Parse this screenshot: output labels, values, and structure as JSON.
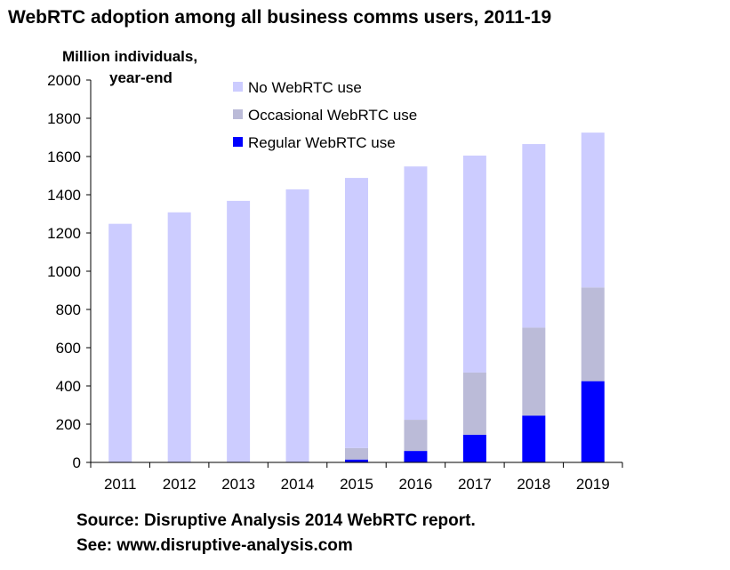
{
  "header": {
    "title": "WebRTC adoption among all business comms users, 2011-19",
    "ylabel_line1": "Million individuals,",
    "ylabel_line2": "year-end"
  },
  "footer": {
    "source_line1": "Source: Disruptive Analysis 2014 WebRTC report.",
    "source_line2": "See: www.disruptive-analysis.com"
  },
  "chart_data": {
    "type": "bar",
    "stacked": true,
    "title": "WebRTC adoption among all business comms users, 2011-19",
    "ylabel": "Million individuals, year-end",
    "xlabel": "",
    "ylim": [
      0,
      2000
    ],
    "yticks": [
      0,
      200,
      400,
      600,
      800,
      1000,
      1200,
      1400,
      1600,
      1800,
      2000
    ],
    "categories": [
      "2011",
      "2012",
      "2013",
      "2014",
      "2015",
      "2016",
      "2017",
      "2018",
      "2019"
    ],
    "legend_position": "top-center",
    "series": [
      {
        "name": "Regular WebRTC use",
        "color": "#0000ff",
        "values": [
          0,
          0,
          0,
          0,
          15,
          60,
          145,
          245,
          425
        ]
      },
      {
        "name": "Occasional WebRTC use",
        "color": "#bbbbd8",
        "values": [
          0,
          0,
          0,
          0,
          60,
          163,
          325,
          460,
          490
        ]
      },
      {
        "name": "No WebRTC use",
        "color": "#ccccff",
        "values": [
          1248,
          1308,
          1368,
          1428,
          1413,
          1325,
          1135,
          960,
          810
        ]
      }
    ],
    "legend_order": [
      "No WebRTC use",
      "Occasional WebRTC use",
      "Regular WebRTC use"
    ]
  }
}
